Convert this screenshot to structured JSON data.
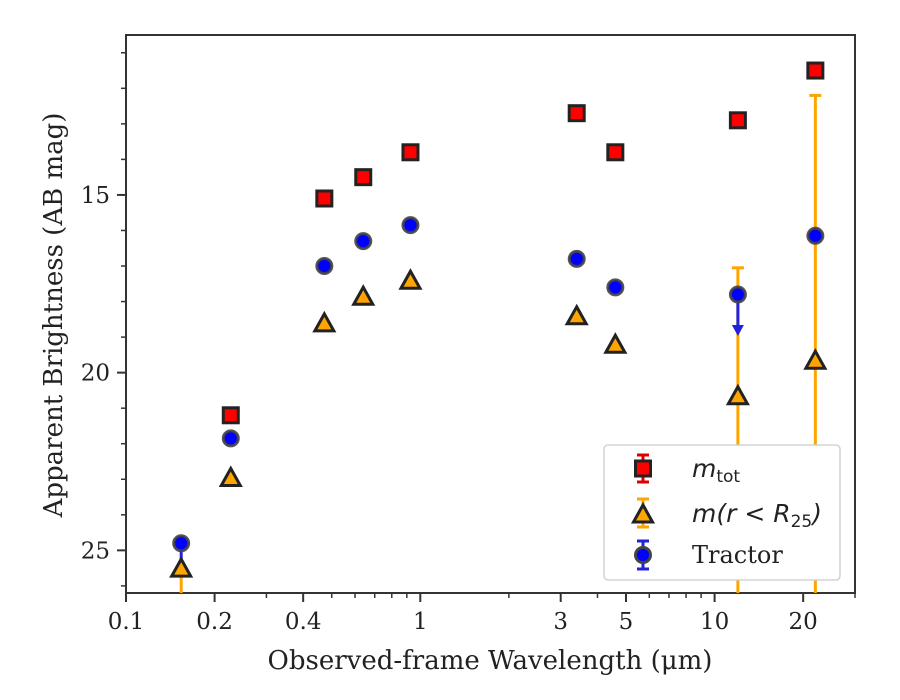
{
  "chart_data": {
    "type": "scatter",
    "xlabel": "Observed-frame Wavelength (μm)",
    "ylabel": "Apparent Brightness (AB mag)",
    "x_scale": "log",
    "xlim": [
      0.1,
      30
    ],
    "ylim": [
      26.2,
      10.5
    ],
    "y_inverted": true,
    "x_ticks": [
      {
        "value": 0.1,
        "label": "0.1"
      },
      {
        "value": 0.2,
        "label": "0.2"
      },
      {
        "value": 0.4,
        "label": "0.4"
      },
      {
        "value": 1,
        "label": "1"
      },
      {
        "value": 3,
        "label": "3"
      },
      {
        "value": 5,
        "label": "5"
      },
      {
        "value": 10,
        "label": "10"
      },
      {
        "value": 20,
        "label": "20"
      }
    ],
    "x_minor_ticks": [
      0.3,
      0.5,
      0.6,
      0.7,
      0.8,
      0.9,
      2,
      4,
      6,
      7,
      8,
      9,
      30
    ],
    "y_ticks": [
      {
        "value": 15,
        "label": "15"
      },
      {
        "value": 20,
        "label": "20"
      },
      {
        "value": 25,
        "label": "25"
      }
    ],
    "y_minor_ticks": [
      11,
      12,
      13,
      14,
      16,
      17,
      18,
      19,
      21,
      22,
      23,
      24,
      26
    ],
    "legend_position": "lower-right",
    "series": [
      {
        "name": "m_tot",
        "label_parts": {
          "main": "m",
          "sub": "tot"
        },
        "marker": "square",
        "color": "#ff0000",
        "edge_color": "#222222",
        "errbar_color": "#e00000",
        "points": [
          {
            "x": 0.227,
            "y": 21.2
          },
          {
            "x": 0.472,
            "y": 15.1
          },
          {
            "x": 0.64,
            "y": 14.5
          },
          {
            "x": 0.926,
            "y": 13.8
          },
          {
            "x": 3.4,
            "y": 12.7
          },
          {
            "x": 4.6,
            "y": 13.8
          },
          {
            "x": 12.0,
            "y": 12.9
          },
          {
            "x": 22.0,
            "y": 11.5
          }
        ]
      },
      {
        "name": "m(r<R_25)",
        "label_parts": {
          "pre": "m(r < R",
          "sub": "25",
          "post": ")"
        },
        "marker": "triangle",
        "color": "#ffa500",
        "edge_color": "#222222",
        "errbar_color": "#ffa500",
        "points": [
          {
            "x": 0.154,
            "y": 25.5,
            "err_low": null,
            "err_high": 26.2
          },
          {
            "x": 0.227,
            "y": 22.95
          },
          {
            "x": 0.472,
            "y": 18.6
          },
          {
            "x": 0.64,
            "y": 17.85
          },
          {
            "x": 0.926,
            "y": 17.4
          },
          {
            "x": 3.4,
            "y": 18.4
          },
          {
            "x": 4.6,
            "y": 19.2
          },
          {
            "x": 12.0,
            "y": 20.65,
            "err_low": 17.05,
            "err_high": 26.2
          },
          {
            "x": 22.0,
            "y": 19.65,
            "err_low": 12.2,
            "err_high": 26.2
          }
        ]
      },
      {
        "name": "Tractor",
        "marker": "circle",
        "color": "#0000ff",
        "edge_color": "#444444",
        "errbar_color": "#2222dd",
        "points": [
          {
            "x": 0.154,
            "y": 24.8
          },
          {
            "x": 0.227,
            "y": 21.85
          },
          {
            "x": 0.472,
            "y": 17.0
          },
          {
            "x": 0.64,
            "y": 16.3
          },
          {
            "x": 0.926,
            "y": 15.85
          },
          {
            "x": 3.4,
            "y": 16.8
          },
          {
            "x": 4.6,
            "y": 17.6
          },
          {
            "x": 12.0,
            "y": 17.8,
            "upper_limit": true,
            "err_high": 18.8
          },
          {
            "x": 22.0,
            "y": 16.15
          }
        ]
      }
    ],
    "legend": {
      "entries": [
        {
          "label_parts": {
            "main": "m",
            "sub": "tot"
          }
        },
        {
          "label_parts": {
            "pre": "m(r < R",
            "sub": "25",
            "post": ")"
          }
        },
        {
          "label": "Tractor"
        }
      ]
    }
  }
}
